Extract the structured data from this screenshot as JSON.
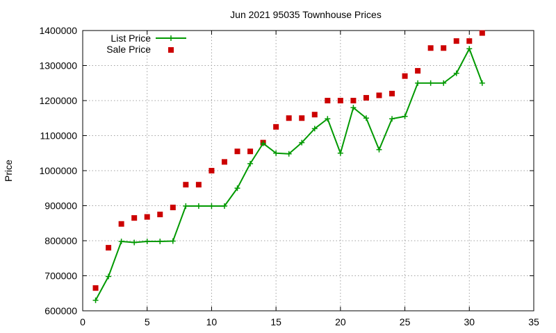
{
  "chart_data": {
    "type": "line",
    "title": "Jun 2021 95035 Townhouse Prices",
    "xlabel": "",
    "ylabel": "Price",
    "xlim": [
      0,
      35
    ],
    "ylim": [
      600000,
      1400000
    ],
    "x_ticks": [
      0,
      5,
      10,
      15,
      20,
      25,
      30,
      35
    ],
    "y_ticks": [
      600000,
      700000,
      800000,
      900000,
      1000000,
      1100000,
      1200000,
      1300000,
      1400000
    ],
    "grid": true,
    "legend_position": "top-left",
    "series": [
      {
        "name": "List Price",
        "style": "line-with-plus-markers",
        "color": "#009900",
        "x": [
          1,
          2,
          3,
          4,
          5,
          6,
          7,
          8,
          9,
          10,
          11,
          12,
          13,
          14,
          15,
          16,
          17,
          18,
          19,
          20,
          21,
          22,
          23,
          24,
          25,
          26,
          27,
          28,
          29,
          30,
          31
        ],
        "y": [
          630000,
          698000,
          798000,
          795000,
          798000,
          798000,
          799000,
          899000,
          899000,
          899000,
          899000,
          950000,
          1020000,
          1078000,
          1050000,
          1048000,
          1080000,
          1120000,
          1148000,
          1050000,
          1180000,
          1150000,
          1060000,
          1148000,
          1155000,
          1250000,
          1250000,
          1250000,
          1278000,
          1348000,
          1250000
        ]
      },
      {
        "name": "Sale Price",
        "style": "square-markers",
        "color": "#cc0000",
        "x": [
          1,
          2,
          3,
          4,
          5,
          6,
          7,
          8,
          9,
          10,
          11,
          12,
          13,
          14,
          15,
          16,
          17,
          18,
          19,
          20,
          21,
          22,
          23,
          24,
          25,
          26,
          27,
          28,
          29,
          30,
          31
        ],
        "y": [
          665000,
          780000,
          848000,
          865000,
          868000,
          875000,
          895000,
          960000,
          960000,
          1000000,
          1025000,
          1055000,
          1055000,
          1080000,
          1125000,
          1150000,
          1150000,
          1160000,
          1200000,
          1200000,
          1200000,
          1208000,
          1215000,
          1220000,
          1270000,
          1285000,
          1350000,
          1350000,
          1370000,
          1370000,
          1393000
        ]
      }
    ]
  }
}
